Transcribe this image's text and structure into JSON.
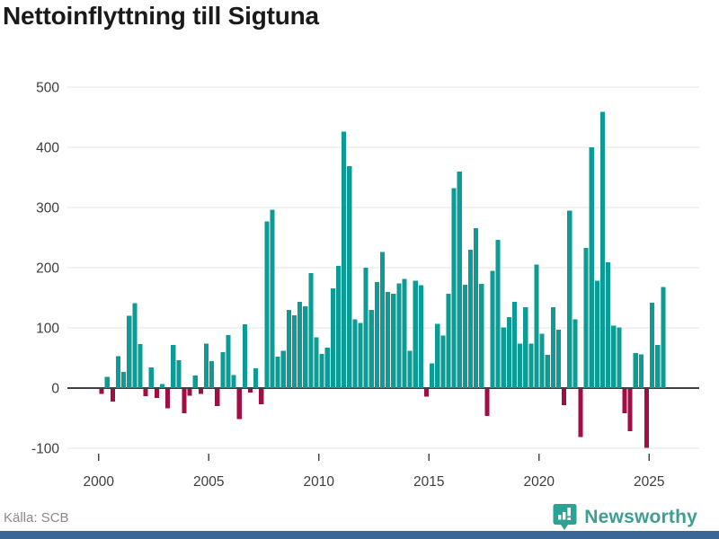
{
  "title": "Nettoinflyttning till Sigtuna",
  "footer": {
    "source": "Källa: SCB",
    "brand": "Newsworthy"
  },
  "chart_data": {
    "type": "bar",
    "title": "Nettoinflyttning till Sigtuna",
    "ylabel": "",
    "xlabel": "",
    "frequency": "quarterly",
    "start_period": "2000Q1",
    "end_period": "2025Q3",
    "ylim": [
      -100,
      500
    ],
    "y_ticks": [
      500,
      400,
      300,
      200,
      100,
      0,
      -100
    ],
    "x_tick_years": [
      2000,
      2005,
      2010,
      2015,
      2020,
      2025
    ],
    "grid": true,
    "legend": "none",
    "colors": {
      "positive": "#0d9b96",
      "negative": "#a00e45"
    },
    "values": [
      -8,
      19,
      -21,
      53,
      27,
      120,
      141,
      73,
      -12,
      34,
      -15,
      7,
      -32,
      72,
      46,
      -40,
      -11,
      21,
      -8,
      74,
      45,
      -28,
      60,
      88,
      22,
      -50,
      106,
      -6,
      33,
      -25,
      277,
      296,
      52,
      62,
      130,
      121,
      143,
      136,
      191,
      84,
      57,
      67,
      166,
      203,
      426,
      369,
      114,
      108,
      200,
      130,
      176,
      226,
      160,
      157,
      174,
      181,
      62,
      178,
      171,
      -13,
      41,
      107,
      87,
      157,
      332,
      360,
      172,
      230,
      266,
      173,
      -45,
      195,
      246,
      101,
      118,
      143,
      74,
      134,
      74,
      205,
      90,
      55,
      134,
      97,
      -27,
      295,
      114,
      -80,
      233,
      400,
      178,
      459,
      209,
      104,
      101,
      -40,
      -70,
      58,
      56,
      -98,
      142,
      72,
      168
    ]
  }
}
